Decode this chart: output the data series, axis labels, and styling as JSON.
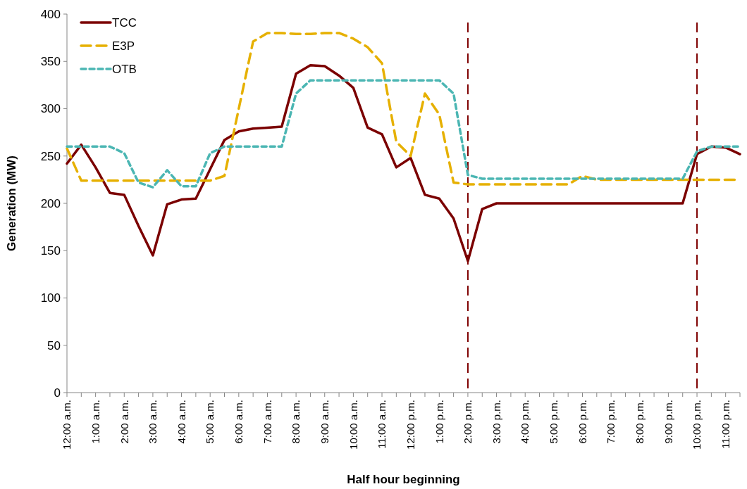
{
  "chart_data": {
    "type": "line",
    "xlabel": "Half hour beginning",
    "ylabel": "Generation (MW)",
    "categories": [
      "12:00 a.m.",
      null,
      "1:00 a.m.",
      null,
      "2:00 a.m.",
      null,
      "3:00 a.m.",
      null,
      "4:00 a.m.",
      null,
      "5:00 a.m.",
      null,
      "6:00 a.m.",
      null,
      "7:00 a.m.",
      null,
      "8:00 a.m.",
      null,
      "9:00 a.m.",
      null,
      "10:00 a.m.",
      null,
      "11:00 a.m.",
      null,
      "12:00 p.m.",
      null,
      "1:00 p.m.",
      null,
      "2:00 p.m.",
      null,
      "3:00 p.m.",
      null,
      "4:00 p.m.",
      null,
      "5:00 p.m.",
      null,
      "6:00 p.m.",
      null,
      "7:00 p.m.",
      null,
      "8:00 p.m.",
      null,
      "9:00 p.m.",
      null,
      "10:00 p.m.",
      null,
      "11:00 p.m.",
      null
    ],
    "series": [
      {
        "name": "TCC",
        "color": "#7b0000",
        "line_style": "solid",
        "values": [
          242,
          262,
          238,
          211,
          209,
          176,
          145,
          199,
          204,
          205,
          236,
          267,
          276,
          279,
          280,
          281,
          337,
          346,
          345,
          335,
          322,
          280,
          273,
          238,
          248,
          209,
          205,
          184,
          139,
          194,
          200,
          200,
          200,
          200,
          200,
          200,
          200,
          200,
          200,
          200,
          200,
          200,
          200,
          200,
          252,
          260,
          259,
          252
        ]
      },
      {
        "name": "E3P",
        "color": "#e6b000",
        "line_style": "dashed",
        "values": [
          258,
          224,
          224,
          224,
          224,
          224,
          224,
          224,
          224,
          224,
          224,
          229,
          300,
          371,
          380,
          380,
          379,
          379,
          380,
          380,
          374,
          365,
          348,
          265,
          250,
          316,
          294,
          222,
          220,
          220,
          220,
          220,
          220,
          220,
          220,
          220,
          229,
          225,
          225,
          225,
          225,
          225,
          225,
          225,
          225,
          225,
          225,
          225
        ]
      },
      {
        "name": "OTB",
        "color": "#4bb6b3",
        "line_style": "dotted",
        "values": [
          260,
          260,
          260,
          260,
          253,
          222,
          217,
          235,
          218,
          218,
          253,
          260,
          260,
          260,
          260,
          260,
          316,
          330,
          330,
          330,
          330,
          330,
          330,
          330,
          330,
          330,
          330,
          316,
          230,
          226,
          226,
          226,
          226,
          226,
          226,
          226,
          226,
          226,
          226,
          226,
          226,
          226,
          226,
          226,
          255,
          260,
          260,
          260
        ]
      }
    ],
    "ylim": [
      0,
      400
    ],
    "yticks": [
      0,
      50,
      100,
      150,
      200,
      250,
      300,
      350,
      400
    ],
    "grid": false,
    "legend": "top left",
    "ref_lines": [
      {
        "axis": "x",
        "value": "2:00 p.m.",
        "color": "#7f0000",
        "line_style": "dashed"
      },
      {
        "axis": "x",
        "value": "10:00 p.m.",
        "color": "#7f0000",
        "line_style": "dashed"
      }
    ]
  }
}
